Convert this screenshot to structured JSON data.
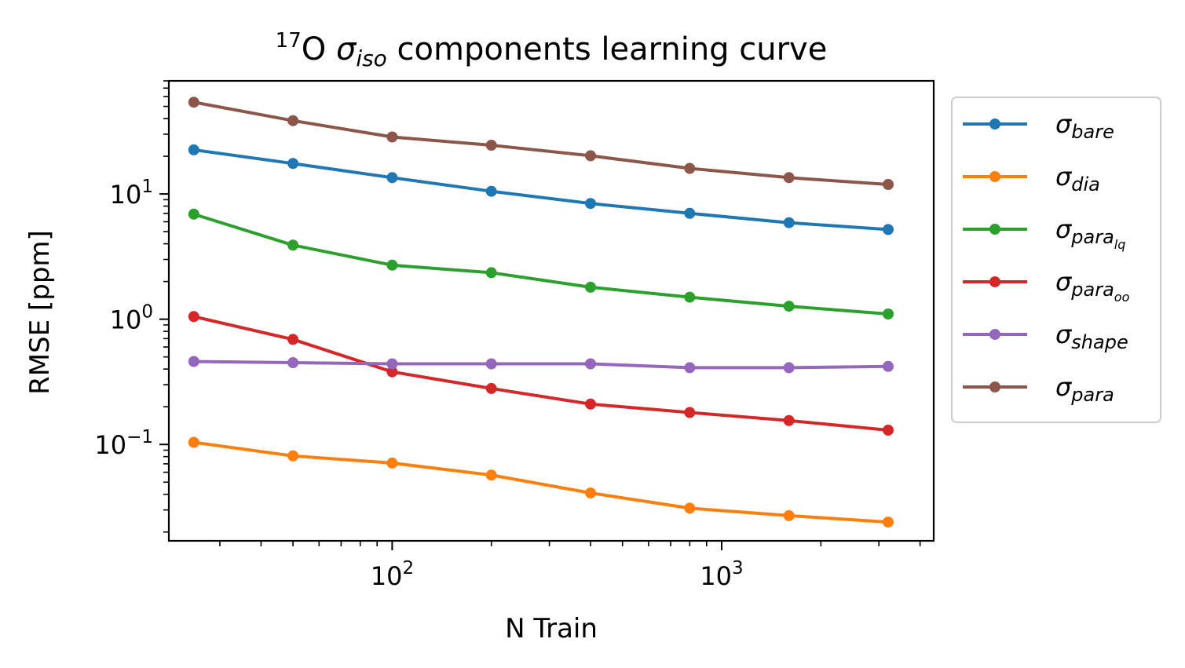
{
  "chart_data": {
    "type": "line",
    "title": {
      "sup": "17",
      "main": "O ",
      "sigma": "σ",
      "sub": "iso",
      "rest": " components learning curve"
    },
    "xlabel": "N Train",
    "ylabel": "RMSE [ppm]",
    "xscale": "log",
    "yscale": "log",
    "xlim": [
      21,
      4400
    ],
    "ylim": [
      0.017,
      80
    ],
    "xticks": [
      {
        "value": 100,
        "base": "10",
        "exp": "2"
      },
      {
        "value": 1000,
        "base": "10",
        "exp": "3"
      }
    ],
    "yticks": [
      {
        "value": 0.1,
        "base": "10",
        "exp": "−1"
      },
      {
        "value": 1,
        "base": "10",
        "exp": "0"
      },
      {
        "value": 10,
        "base": "10",
        "exp": "1"
      }
    ],
    "grid": false,
    "legend_position": "outside-right",
    "x": [
      25,
      50,
      100,
      200,
      400,
      800,
      1600,
      3200
    ],
    "series": [
      {
        "name": "σ",
        "sub": "bare",
        "subsub": "",
        "color": "#1f77b4",
        "values": [
          22.5,
          17.5,
          13.5,
          10.5,
          8.4,
          7.0,
          5.9,
          5.2
        ]
      },
      {
        "name": "σ",
        "sub": "dia",
        "subsub": "",
        "color": "#ff7f0e",
        "values": [
          0.104,
          0.081,
          0.071,
          0.057,
          0.041,
          0.031,
          0.027,
          0.024
        ]
      },
      {
        "name": "σ",
        "sub": "para",
        "subsub": "lq",
        "color": "#2ca02c",
        "values": [
          6.9,
          3.9,
          2.7,
          2.35,
          1.8,
          1.5,
          1.27,
          1.1
        ]
      },
      {
        "name": "σ",
        "sub": "para",
        "subsub": "oo",
        "color": "#d62728",
        "values": [
          1.05,
          0.69,
          0.38,
          0.28,
          0.21,
          0.18,
          0.155,
          0.13
        ]
      },
      {
        "name": "σ",
        "sub": "shape",
        "subsub": "",
        "color": "#9467bd",
        "values": [
          0.46,
          0.45,
          0.44,
          0.44,
          0.44,
          0.41,
          0.41,
          0.42
        ]
      },
      {
        "name": "σ",
        "sub": "para",
        "subsub": "",
        "color": "#8c564b",
        "values": [
          54,
          38.5,
          28.5,
          24.5,
          20.2,
          16.0,
          13.5,
          11.9
        ]
      }
    ]
  }
}
